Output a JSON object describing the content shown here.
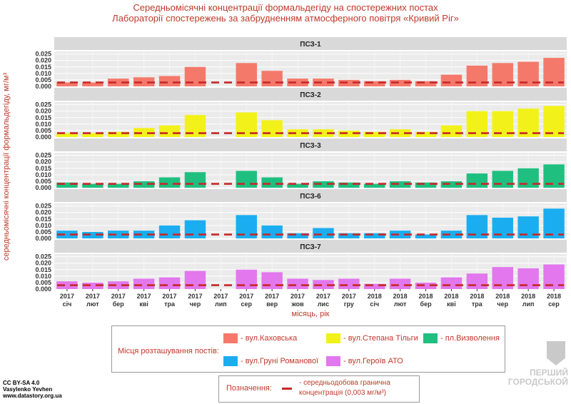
{
  "title": {
    "line1": "Середньомісячні концентрації формальдегіду на спостережних постах",
    "line2": "Лабораторії спостережень за забрудненням атмосферного повітря «Кривий Ріг»"
  },
  "chart_data": {
    "type": "bar",
    "ylabel": "середньомісячні концентрації формальдегіду, мг/м³",
    "xlabel": "місяць, рік",
    "yticks": [
      "0.000",
      "0.005",
      "0.010",
      "0.015",
      "0.020",
      "0.025"
    ],
    "ylim": [
      0,
      0.027
    ],
    "threshold": 0.003,
    "categories": [
      {
        "year": "2017",
        "month": "січ"
      },
      {
        "year": "2017",
        "month": "лют"
      },
      {
        "year": "2017",
        "month": "бер"
      },
      {
        "year": "2017",
        "month": "кві"
      },
      {
        "year": "2017",
        "month": "тра"
      },
      {
        "year": "2017",
        "month": "чер"
      },
      {
        "year": "2017",
        "month": "лип"
      },
      {
        "year": "2017",
        "month": "сер"
      },
      {
        "year": "2017",
        "month": "вер"
      },
      {
        "year": "2017",
        "month": "жов"
      },
      {
        "year": "2017",
        "month": "лис"
      },
      {
        "year": "2017",
        "month": "гру"
      },
      {
        "year": "2018",
        "month": "січ"
      },
      {
        "year": "2018",
        "month": "лют"
      },
      {
        "year": "2018",
        "month": "бер"
      },
      {
        "year": "2018",
        "month": "кві"
      },
      {
        "year": "2018",
        "month": "тра"
      },
      {
        "year": "2018",
        "month": "чер"
      },
      {
        "year": "2018",
        "month": "лип"
      },
      {
        "year": "2018",
        "month": "сер"
      }
    ],
    "series": [
      {
        "name": "ПСЗ-1",
        "color": "#f4796b",
        "values": [
          0.003,
          0.003,
          0.006,
          0.007,
          0.008,
          0.015,
          null,
          0.018,
          0.012,
          0.006,
          0.006,
          0.005,
          0.004,
          0.005,
          0.004,
          0.009,
          0.016,
          0.018,
          0.019,
          0.022
        ]
      },
      {
        "name": "ПСЗ-2",
        "color": "#f2f21a",
        "values": [
          0.003,
          0.003,
          0.004,
          0.007,
          0.009,
          0.017,
          null,
          0.019,
          0.013,
          0.006,
          0.006,
          0.005,
          0.004,
          0.006,
          0.004,
          0.009,
          0.02,
          0.02,
          0.022,
          0.024
        ]
      },
      {
        "name": "ПСЗ-3",
        "color": "#1fbf80",
        "values": [
          0.004,
          0.003,
          0.003,
          0.005,
          0.008,
          0.012,
          null,
          0.013,
          0.008,
          0.003,
          0.005,
          0.004,
          0.003,
          0.005,
          0.004,
          0.005,
          0.011,
          0.013,
          0.015,
          0.018
        ]
      },
      {
        "name": "ПСЗ-6",
        "color": "#1aaef0",
        "values": [
          0.006,
          0.005,
          0.006,
          0.006,
          0.01,
          0.014,
          null,
          0.018,
          0.01,
          0.004,
          0.008,
          0.004,
          0.004,
          0.006,
          0.003,
          0.006,
          0.018,
          0.016,
          0.017,
          0.023
        ]
      },
      {
        "name": "ПСЗ-7",
        "color": "#e277ee",
        "values": [
          0.006,
          0.005,
          0.006,
          0.008,
          0.009,
          0.014,
          null,
          0.015,
          0.013,
          0.008,
          0.007,
          0.008,
          0.004,
          0.008,
          0.005,
          0.009,
          0.012,
          0.017,
          0.016,
          0.019
        ]
      }
    ]
  },
  "legend": {
    "title": "Місця розташування постів:",
    "items": [
      {
        "label": "- вул.Каховська",
        "color": "#f4796b"
      },
      {
        "label": "- вул.Степана Тільги",
        "color": "#f2f21a"
      },
      {
        "label": "- пл.Визволення",
        "color": "#1fbf80"
      },
      {
        "label": "- вул.Груні Романової",
        "color": "#1aaef0"
      },
      {
        "label": "- вул.Героїв АТО",
        "color": "#e277ee"
      }
    ]
  },
  "note": {
    "label": "Позначення:",
    "line1": "- середньодобова гранична",
    "line2": "концентрація (0,003 мг/м³)"
  },
  "credits": {
    "license": "CC BY-SA 4.0",
    "author": "Vasylenko Yevhen",
    "site": "www.datastory.org.ua"
  },
  "watermark": {
    "line1": "ПЕРШИЙ",
    "line2": "ГОРОДСЬКОЙ"
  }
}
